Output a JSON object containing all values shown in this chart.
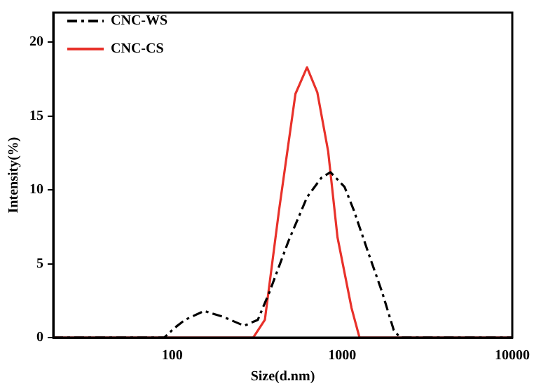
{
  "chart_data": {
    "type": "line",
    "xlabel": "Size(d.nm)",
    "ylabel": "Intensity(%)",
    "log": "x",
    "xlim": [
      20,
      10000
    ],
    "xticks": [
      100,
      1000,
      10000
    ],
    "ylim": [
      0,
      22
    ],
    "yticks": [
      0,
      5,
      10,
      15,
      20
    ],
    "grid": false,
    "legend": "top left",
    "marker": "none",
    "series": [
      {
        "name": "CNC-WS",
        "color": "#000000",
        "line_style": "dashed",
        "x": [
          20,
          90,
          102,
          119,
          154,
          200,
          265,
          319,
          374,
          482,
          621,
          752,
          853,
          1032,
          1172,
          1418,
          1714,
          2010,
          2190,
          10000
        ],
        "values": [
          0,
          0,
          0.6,
          1.2,
          1.8,
          1.4,
          0.8,
          1.2,
          3.1,
          6.5,
          9.5,
          10.8,
          11.2,
          10.2,
          8.6,
          5.8,
          3.1,
          0.5,
          0,
          0
        ]
      },
      {
        "name": "CNC-CS",
        "color": "#e8312a",
        "line_style": "solid",
        "x": [
          20,
          300,
          351,
          425,
          531,
          621,
          714,
          827,
          938,
          1135,
          1264,
          10000
        ],
        "values": [
          0,
          0,
          1.2,
          8.6,
          16.5,
          18.3,
          16.6,
          12.6,
          6.8,
          2.0,
          0,
          0
        ]
      }
    ]
  }
}
